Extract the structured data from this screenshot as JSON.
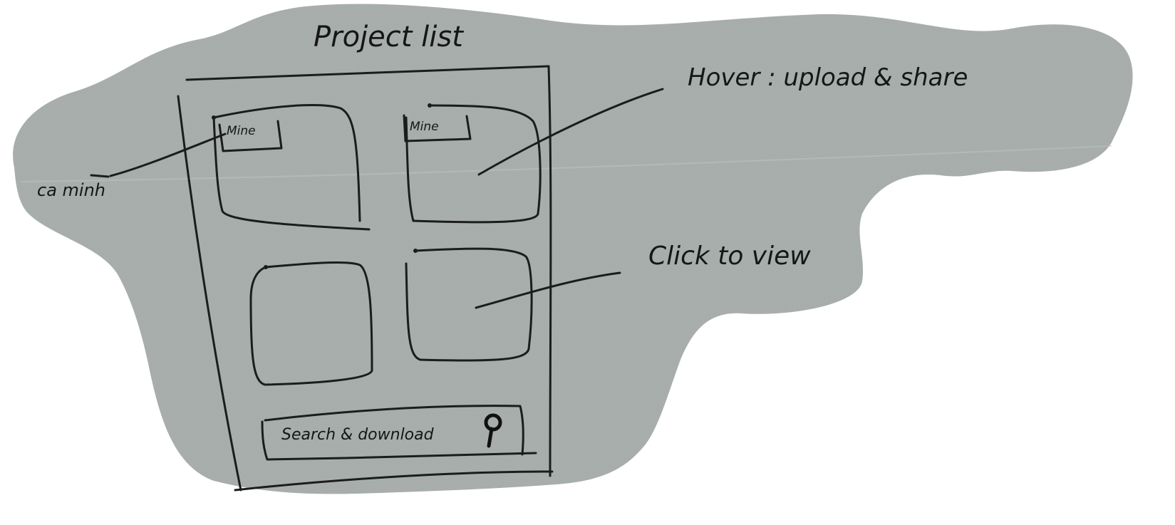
{
  "sketch": {
    "title": "Project list",
    "annotations": {
      "hover": "Hover : upload & share",
      "click": "Click to view",
      "left_note": "ca minh"
    },
    "cards": [
      {
        "tag": "Mine"
      },
      {
        "tag": "Mine"
      },
      {
        "tag": ""
      },
      {
        "tag": ""
      }
    ],
    "search_bar": {
      "label": "Search & download",
      "icon": "search-icon"
    },
    "colors": {
      "paper": "#a7adab",
      "ink": "#1b1d1d",
      "background": "#ffffff"
    }
  }
}
